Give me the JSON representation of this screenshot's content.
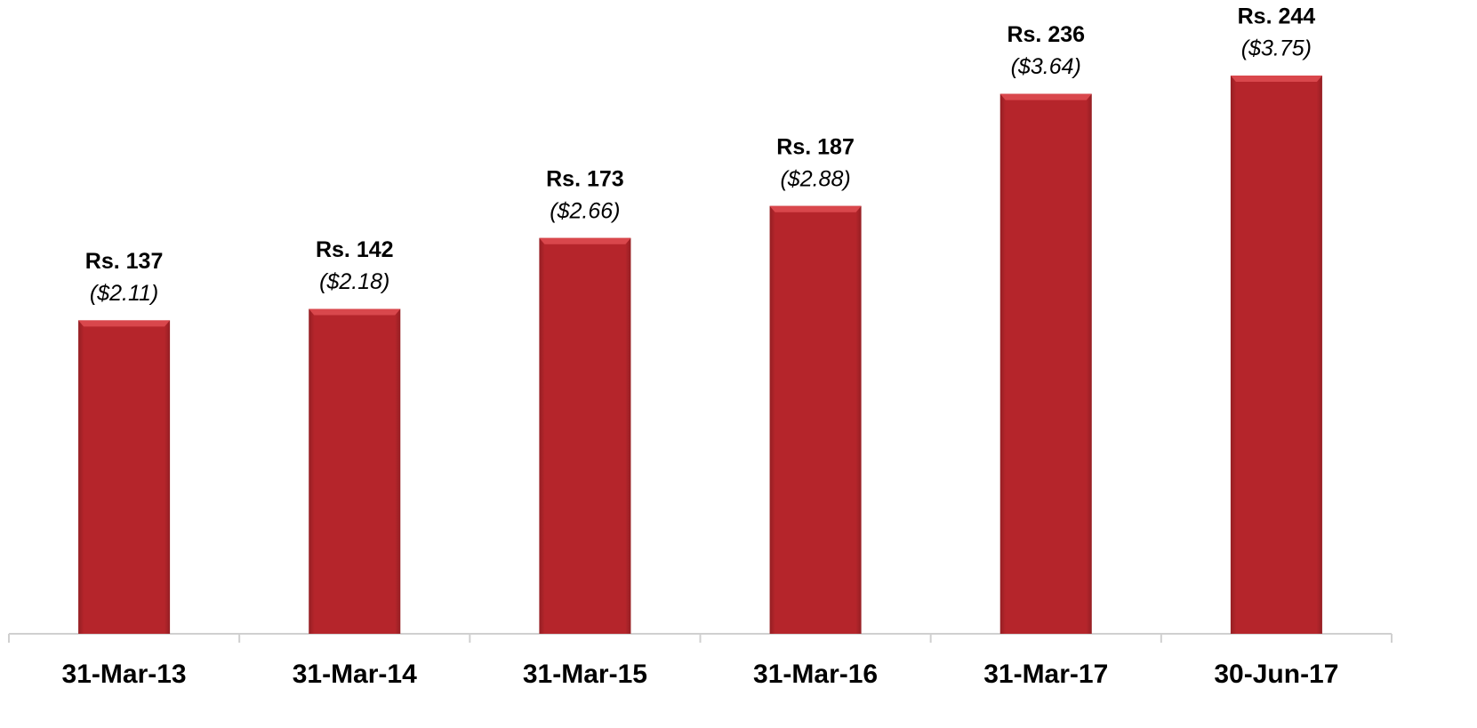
{
  "chart_data": {
    "type": "bar",
    "categories": [
      "31-Mar-13",
      "31-Mar-14",
      "31-Mar-15",
      "31-Mar-16",
      "31-Mar-17",
      "30-Jun-17"
    ],
    "values": [
      137,
      142,
      173,
      187,
      236,
      244
    ],
    "value_labels": [
      "Rs. 137",
      "Rs. 142",
      "Rs. 173",
      "Rs. 187",
      "Rs. 236",
      "Rs. 244"
    ],
    "usd_values": [
      2.11,
      2.18,
      2.66,
      2.88,
      3.64,
      3.75
    ],
    "usd_value_labels": [
      "($2.11)",
      "($2.18)",
      "($2.66)",
      "($2.88)",
      "($3.64)",
      "($3.75)"
    ],
    "color": "#b5252b"
  }
}
